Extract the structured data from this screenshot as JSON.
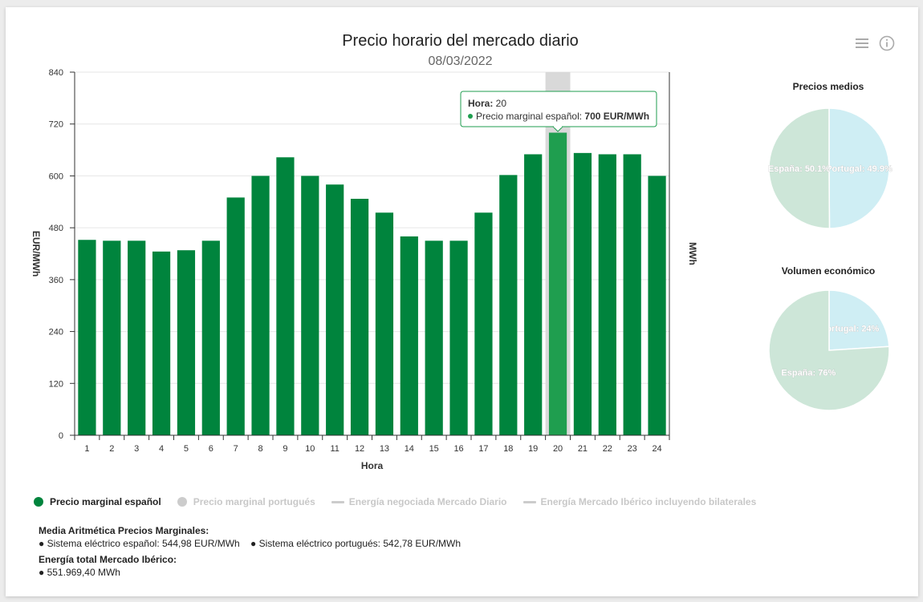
{
  "header": {
    "title": "Precio horario del mercado diario",
    "subtitle": "08/03/2022"
  },
  "toolbar": {
    "menu_icon": "hamburger-menu-icon",
    "info_icon": "info-icon"
  },
  "chart_data": [
    {
      "type": "bar",
      "title": "Precio horario del mercado diario",
      "subtitle": "08/03/2022",
      "xlabel": "Hora",
      "ylabel": "EUR/MWh",
      "y2label": "MWh",
      "ylim": [
        0,
        840
      ],
      "yticks": [
        "0",
        "120",
        "240",
        "360",
        "480",
        "600",
        "720",
        "840"
      ],
      "categories": [
        "1",
        "2",
        "3",
        "4",
        "5",
        "6",
        "7",
        "8",
        "9",
        "10",
        "11",
        "12",
        "13",
        "14",
        "15",
        "16",
        "17",
        "18",
        "19",
        "20",
        "21",
        "22",
        "23",
        "24"
      ],
      "series": [
        {
          "name": "Precio marginal español",
          "color": "#00843d",
          "values": [
            452,
            450,
            450,
            425,
            428,
            450,
            550,
            600,
            643,
            600,
            580,
            547,
            515,
            460,
            450,
            450,
            515,
            602,
            650,
            700,
            653,
            650,
            650,
            600
          ]
        }
      ],
      "grid": true,
      "highlight_index": 19,
      "tooltip": {
        "hour_label": "Hora:",
        "hour_value": "20",
        "series_label": "Precio marginal español:",
        "value_text": "700 EUR/MWh"
      },
      "legend": [
        {
          "label": "Precio marginal español",
          "kind": "dot",
          "color": "#00843d",
          "active": true
        },
        {
          "label": "Precio marginal portugués",
          "kind": "dot",
          "color": "#cccccc",
          "active": false
        },
        {
          "label": "Energía negociada Mercado Diario",
          "kind": "line",
          "color": "#cccccc",
          "active": false
        },
        {
          "label": "Energía Mercado Ibérico incluyendo bilaterales",
          "kind": "line",
          "color": "#cccccc",
          "active": false
        }
      ]
    },
    {
      "type": "pie",
      "title": "Precios medios",
      "slices": [
        {
          "label": "Portugal: 49.9%",
          "value": 49.9,
          "color": "#cfeef4"
        },
        {
          "label": "España: 50.1%",
          "value": 50.1,
          "color": "#cde6d8"
        }
      ]
    },
    {
      "type": "pie",
      "title": "Volumen económico",
      "slices": [
        {
          "label": "Portugal: 24%",
          "value": 24,
          "color": "#cfeef4"
        },
        {
          "label": "España: 76%",
          "value": 76,
          "color": "#cde6d8"
        }
      ]
    }
  ],
  "stats": {
    "mean_heading": "Media Aritmética Precios Marginales:",
    "mean_es": "● Sistema eléctrico español: 544,98 EUR/MWh",
    "mean_pt": "● Sistema eléctrico portugués: 542,78 EUR/MWh",
    "energy_heading": "Energía total Mercado Ibérico:",
    "energy_value": "● 551.969,40 MWh"
  }
}
